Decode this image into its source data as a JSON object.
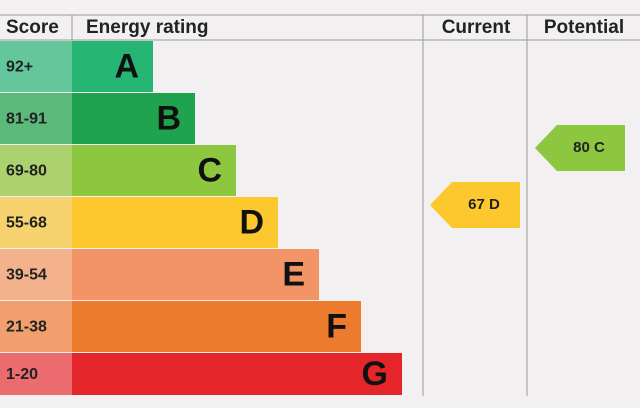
{
  "header": {
    "score": "Score",
    "rating": "Energy rating",
    "current": "Current",
    "potential": "Potential"
  },
  "bands": [
    {
      "score": "92+",
      "letter": "A"
    },
    {
      "score": "81-91",
      "letter": "B"
    },
    {
      "score": "69-80",
      "letter": "C"
    },
    {
      "score": "55-68",
      "letter": "D"
    },
    {
      "score": "39-54",
      "letter": "E"
    },
    {
      "score": "21-38",
      "letter": "F"
    },
    {
      "score": "1-20",
      "letter": "G"
    }
  ],
  "current": "67 D",
  "potential": "80 C"
}
